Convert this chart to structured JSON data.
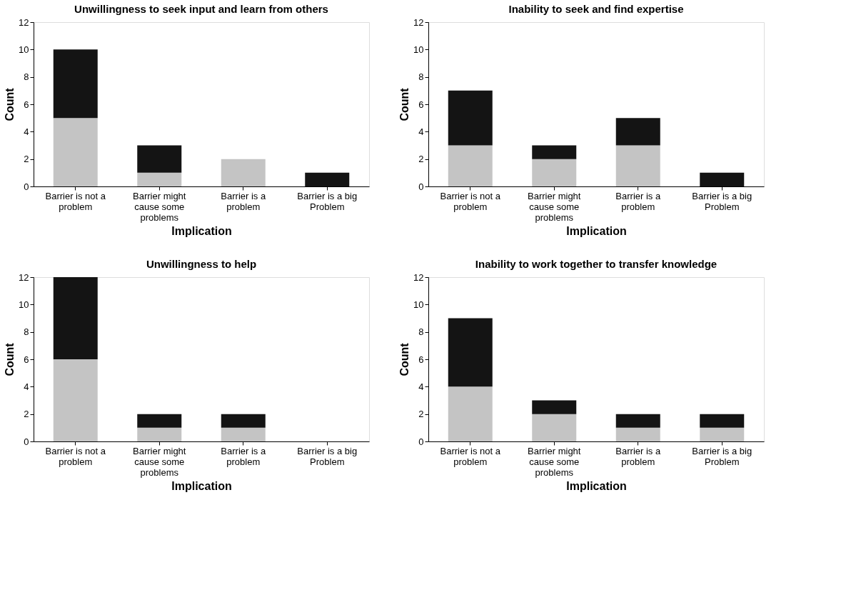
{
  "chart_data": [
    {
      "type": "bar",
      "title": "Unwillingness to seek input and learn from others",
      "xlabel": "Implication",
      "ylabel": "Count",
      "categories": [
        "Barrier is not a problem",
        "Barrier might cause some problems",
        "Barrier is a problem",
        "Barrier is a big Problem"
      ],
      "stacked": true,
      "ylim": [
        0,
        12
      ],
      "yticks": [
        0,
        2,
        4,
        6,
        8,
        10,
        12
      ],
      "grid": false,
      "legend": false,
      "series": [
        {
          "color": "#c4c4c4",
          "values": [
            5,
            1,
            2,
            0
          ]
        },
        {
          "color": "#141414",
          "values": [
            5,
            2,
            0,
            1
          ]
        }
      ]
    },
    {
      "type": "bar",
      "title": "Inability to seek and find expertise",
      "xlabel": "Implication",
      "ylabel": "Count",
      "categories": [
        "Barrier is not a problem",
        "Barrier might cause some problems",
        "Barrier is a problem",
        "Barrier is a big Problem"
      ],
      "stacked": true,
      "ylim": [
        0,
        12
      ],
      "yticks": [
        0,
        2,
        4,
        6,
        8,
        10,
        12
      ],
      "grid": false,
      "legend": false,
      "series": [
        {
          "color": "#c4c4c4",
          "values": [
            3,
            2,
            3,
            0
          ]
        },
        {
          "color": "#141414",
          "values": [
            4,
            1,
            2,
            1
          ]
        }
      ]
    },
    {
      "type": "bar",
      "title": "Unwillingness to help",
      "xlabel": "Implication",
      "ylabel": "Count",
      "categories": [
        "Barrier is not a problem",
        "Barrier might cause some problems",
        "Barrier is a problem",
        "Barrier is a big Problem"
      ],
      "stacked": true,
      "ylim": [
        0,
        12
      ],
      "yticks": [
        0,
        2,
        4,
        6,
        8,
        10,
        12
      ],
      "grid": false,
      "legend": false,
      "series": [
        {
          "color": "#c4c4c4",
          "values": [
            6,
            1,
            1,
            0
          ]
        },
        {
          "color": "#141414",
          "values": [
            6,
            1,
            1,
            0
          ]
        }
      ]
    },
    {
      "type": "bar",
      "title": "Inability to work together to transfer knowledge",
      "xlabel": "Implication",
      "ylabel": "Count",
      "categories": [
        "Barrier is not a problem",
        "Barrier might cause some problems",
        "Barrier is a problem",
        "Barrier is a big Problem"
      ],
      "stacked": true,
      "ylim": [
        0,
        12
      ],
      "yticks": [
        0,
        2,
        4,
        6,
        8,
        10,
        12
      ],
      "grid": false,
      "legend": false,
      "series": [
        {
          "color": "#c4c4c4",
          "values": [
            4,
            2,
            1,
            1
          ]
        },
        {
          "color": "#141414",
          "values": [
            5,
            1,
            1,
            1
          ]
        }
      ]
    }
  ]
}
